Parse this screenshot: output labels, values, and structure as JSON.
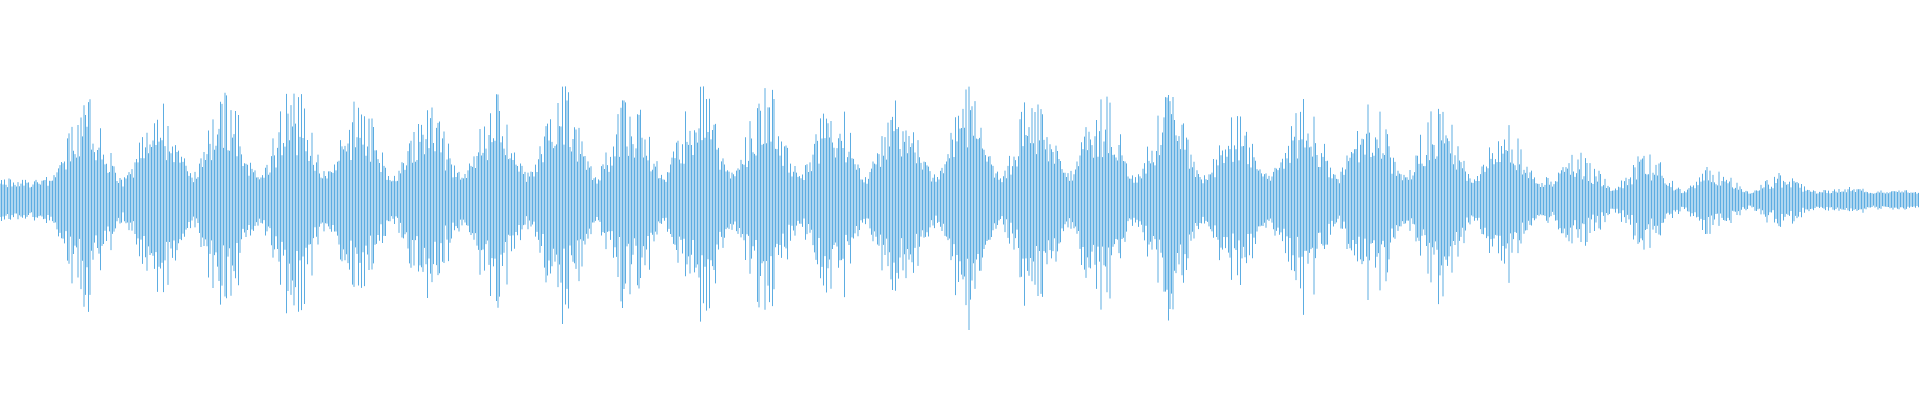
{
  "chart_data": {
    "type": "area",
    "title": "",
    "xlabel": "",
    "ylabel": "",
    "grid": false,
    "legend": "none",
    "color": "#5dade2",
    "background": "#ffffff",
    "ylim": [
      -1,
      1
    ],
    "xlim": [
      0,
      1
    ],
    "envelope": {
      "burst_centers": [
        0.045,
        0.083,
        0.117,
        0.153,
        0.187,
        0.223,
        0.258,
        0.293,
        0.328,
        0.364,
        0.399,
        0.434,
        0.469,
        0.504,
        0.539,
        0.574,
        0.609,
        0.644,
        0.679,
        0.714,
        0.749,
        0.784,
        0.823,
        0.858,
        0.893,
        0.928,
        0.963,
        0.992
      ],
      "peak_amplitude": [
        0.55,
        0.52,
        0.56,
        0.58,
        0.53,
        0.5,
        0.54,
        0.58,
        0.55,
        0.6,
        0.6,
        0.53,
        0.55,
        0.59,
        0.57,
        0.54,
        0.53,
        0.43,
        0.52,
        0.5,
        0.51,
        0.39,
        0.25,
        0.25,
        0.18,
        0.14,
        0.07,
        0.05
      ],
      "trough_amplitude": 0.08
    }
  }
}
